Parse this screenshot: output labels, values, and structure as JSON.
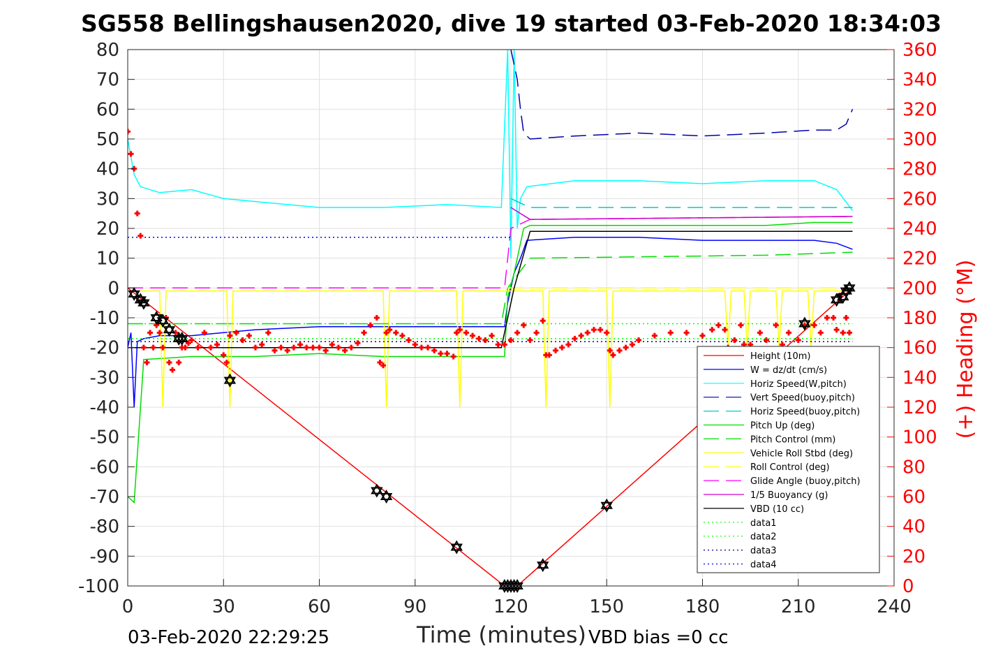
{
  "title": "SG558 Bellingshausen2020, dive 19 started 03-Feb-2020 18:34:03",
  "footer_left": "03-Feb-2020 22:29:25",
  "footer_right": "VBD bias =0 cc",
  "chart_data": {
    "type": "line",
    "xlabel": "Time (minutes)",
    "ylabel_left": "",
    "ylabel_right": "(+) Heading (°M)",
    "xlim": [
      0,
      240
    ],
    "ylim_left": [
      -100,
      80
    ],
    "ylim_right": [
      0,
      360
    ],
    "xticks": [
      "0",
      "30",
      "60",
      "90",
      "120",
      "150",
      "180",
      "210",
      "240"
    ],
    "yticks_left": [
      "80",
      "70",
      "60",
      "50",
      "40",
      "30",
      "20",
      "10",
      "0",
      "-10",
      "-20",
      "-30",
      "-40",
      "-50",
      "-60",
      "-70",
      "-80",
      "-90",
      "-100"
    ],
    "yticks_right": [
      "360",
      "340",
      "320",
      "300",
      "280",
      "260",
      "240",
      "220",
      "200",
      "180",
      "160",
      "140",
      "120",
      "100",
      "80",
      "60",
      "40",
      "20",
      "0"
    ],
    "grid": true,
    "legend_position": "bottom-right",
    "series": [
      {
        "name": "Height (10m)",
        "color": "#ff0000",
        "style": "solid",
        "x": [
          0,
          118,
          122,
          227
        ],
        "y": [
          0,
          -100,
          -100,
          0
        ]
      },
      {
        "name": "W = dz/dt (cm/s)",
        "color": "#0000ff",
        "style": "solid",
        "x": [
          0,
          1,
          2,
          3,
          5,
          10,
          20,
          30,
          40,
          60,
          80,
          100,
          118,
          119,
          121,
          123,
          125,
          140,
          160,
          180,
          200,
          215,
          222,
          227
        ],
        "y": [
          -20,
          -15,
          -40,
          -18,
          -17,
          -16,
          -16,
          -15,
          -14,
          -13,
          -13,
          -13,
          -13,
          -5,
          5,
          10,
          16,
          17,
          17,
          16,
          16,
          16,
          15,
          13
        ]
      },
      {
        "name": "Horiz Speed(W,pitch)",
        "color": "#00ffff",
        "style": "solid",
        "x": [
          0,
          2,
          4,
          10,
          20,
          30,
          40,
          60,
          80,
          100,
          117,
          119,
          120,
          121,
          122,
          123,
          125,
          140,
          160,
          180,
          200,
          215,
          222,
          227
        ],
        "y": [
          50,
          38,
          34,
          32,
          33,
          30,
          29,
          27,
          27,
          28,
          27,
          80,
          10,
          80,
          20,
          30,
          34,
          36,
          36,
          35,
          36,
          36,
          33,
          26
        ]
      },
      {
        "name": "Vert Speed(buoy,pitch)",
        "color": "#0000aa",
        "style": "dashed",
        "x": [
          120,
          122,
          123,
          124,
          126,
          140,
          160,
          180,
          200,
          215,
          222,
          225,
          227
        ],
        "y": [
          80,
          70,
          60,
          52,
          50,
          51,
          52,
          51,
          52,
          53,
          53,
          55,
          60
        ]
      },
      {
        "name": "Horiz Speed(buoy,pitch)",
        "color": "#00cccc",
        "style": "dashed",
        "x": [
          120,
          124,
          126,
          227
        ],
        "y": [
          30,
          28,
          27,
          27
        ]
      },
      {
        "name": "Pitch Up (deg)",
        "color": "#00dd00",
        "style": "solid",
        "x": [
          0,
          2,
          5,
          20,
          40,
          60,
          80,
          100,
          118,
          119,
          121,
          124,
          126,
          140,
          160,
          180,
          200,
          215,
          227
        ],
        "y": [
          -70,
          -72,
          -24,
          -23,
          -23,
          -22,
          -23,
          -23,
          -23,
          -3,
          5,
          20,
          21,
          21,
          21,
          21,
          21,
          22,
          22
        ]
      },
      {
        "name": "Pitch Control (mm)",
        "color": "#00dd00",
        "style": "dashed",
        "x": [
          0,
          4,
          117,
          119,
          126,
          200,
          227
        ],
        "y": [
          -12,
          -12,
          -12,
          0,
          10,
          11,
          12
        ]
      },
      {
        "name": "Vehicle Roll Stbd (deg)",
        "color": "#ffff00",
        "style": "solid",
        "x": [
          0,
          10,
          11,
          12,
          31,
          32,
          33,
          80,
          81,
          82,
          103,
          104,
          105,
          120,
          130,
          131,
          132,
          150,
          151,
          152,
          187,
          188,
          189,
          193,
          194,
          195,
          203,
          204,
          205,
          213,
          214,
          215,
          227
        ],
        "y": [
          -1,
          -1,
          -40,
          -1,
          -1,
          -40,
          -1,
          -1,
          -40,
          -1,
          -1,
          -40,
          -1,
          -1,
          -1,
          -40,
          -1,
          -1,
          -40,
          -1,
          -1,
          -20,
          -1,
          -1,
          -20,
          -1,
          -1,
          -20,
          -1,
          -1,
          -20,
          -1,
          -1
        ]
      },
      {
        "name": "Roll Control (deg)",
        "color": "#ffff00",
        "style": "dashed",
        "x": [
          0,
          227
        ],
        "y": [
          0,
          0
        ]
      },
      {
        "name": "Glide Angle (buoy,pitch)",
        "color": "#ff00ff",
        "style": "dashed",
        "x": [
          0,
          118,
          120,
          126,
          227
        ],
        "y": [
          0,
          0,
          20,
          23,
          24
        ]
      },
      {
        "name": "1/5 Buoyancy (g)",
        "color": "#cc00cc",
        "style": "solid",
        "x": [
          120,
          123,
          126,
          227
        ],
        "y": [
          27,
          25,
          23,
          24
        ]
      },
      {
        "name": "VBD (10 cc)",
        "color": "#000000",
        "style": "solid",
        "x": [
          0,
          117,
          121,
          126,
          227
        ],
        "y": [
          -20,
          -20,
          0,
          19,
          19
        ]
      },
      {
        "name": "data1",
        "color": "#00ff00",
        "style": "dotted",
        "x": [
          0,
          227
        ],
        "y": [
          -12,
          -12
        ]
      },
      {
        "name": "data2",
        "color": "#00ff00",
        "style": "dotted",
        "x": [
          0,
          227
        ],
        "y": [
          -17,
          -17
        ]
      },
      {
        "name": "data3",
        "color": "#000080",
        "style": "dotted",
        "x": [
          0,
          227
        ],
        "y": [
          -18,
          -18
        ]
      },
      {
        "name": "data4",
        "color": "#0000ff",
        "style": "dotted",
        "x": [
          0,
          120
        ],
        "y": [
          17,
          17
        ]
      }
    ],
    "heading_series": {
      "axis": "right",
      "color": "#ff0000",
      "marker": "plus",
      "x": [
        0,
        1,
        2,
        3,
        4,
        5,
        6,
        7,
        8,
        9,
        10,
        11,
        12,
        13,
        14,
        15,
        16,
        17,
        18,
        19,
        20,
        22,
        24,
        26,
        28,
        30,
        31,
        32,
        34,
        36,
        38,
        40,
        42,
        44,
        46,
        48,
        50,
        52,
        54,
        56,
        58,
        60,
        62,
        64,
        66,
        68,
        70,
        72,
        74,
        76,
        78,
        79,
        80,
        81,
        82,
        84,
        86,
        88,
        90,
        92,
        94,
        96,
        98,
        100,
        102,
        103,
        104,
        106,
        108,
        110,
        112,
        114,
        116,
        118,
        120,
        122,
        124,
        126,
        128,
        130,
        131,
        132,
        134,
        136,
        138,
        140,
        142,
        144,
        146,
        148,
        150,
        151,
        152,
        154,
        156,
        158,
        160,
        165,
        170,
        175,
        180,
        183,
        185,
        187,
        188,
        190,
        192,
        193,
        195,
        198,
        200,
        203,
        205,
        207,
        210,
        212,
        215,
        217,
        219,
        221,
        222,
        223,
        224,
        225,
        226
      ],
      "y": [
        305,
        290,
        280,
        250,
        235,
        160,
        150,
        170,
        160,
        175,
        170,
        160,
        180,
        150,
        145,
        170,
        150,
        160,
        160,
        163,
        165,
        160,
        170,
        160,
        162,
        155,
        150,
        168,
        170,
        165,
        168,
        160,
        162,
        170,
        158,
        160,
        158,
        160,
        162,
        160,
        160,
        160,
        158,
        162,
        160,
        158,
        160,
        163,
        170,
        175,
        180,
        150,
        148,
        170,
        172,
        170,
        168,
        165,
        162,
        160,
        160,
        158,
        156,
        156,
        154,
        170,
        172,
        170,
        168,
        166,
        165,
        168,
        162,
        162,
        165,
        170,
        175,
        165,
        170,
        178,
        155,
        155,
        158,
        160,
        162,
        166,
        168,
        170,
        172,
        172,
        170,
        158,
        155,
        158,
        160,
        162,
        165,
        168,
        170,
        170,
        168,
        172,
        175,
        172,
        160,
        165,
        175,
        162,
        162,
        170,
        165,
        175,
        162,
        170,
        165,
        175,
        175,
        170,
        180,
        180,
        172,
        195,
        170,
        180,
        170
      ]
    },
    "waypoints": {
      "marker": "triangle",
      "x": [
        2,
        4,
        5,
        9,
        11,
        13,
        16,
        17,
        32,
        78,
        81,
        103,
        118,
        119,
        120,
        121,
        122,
        130,
        150,
        212,
        222,
        224,
        225,
        226
      ],
      "y": [
        -2,
        -4,
        -5,
        -10,
        -11,
        -14,
        -17,
        -17,
        -31,
        -68,
        -70,
        -87,
        -100,
        -100,
        -100,
        -100,
        -100,
        -93,
        -73,
        -12,
        -4,
        -3,
        -1,
        0
      ]
    }
  }
}
